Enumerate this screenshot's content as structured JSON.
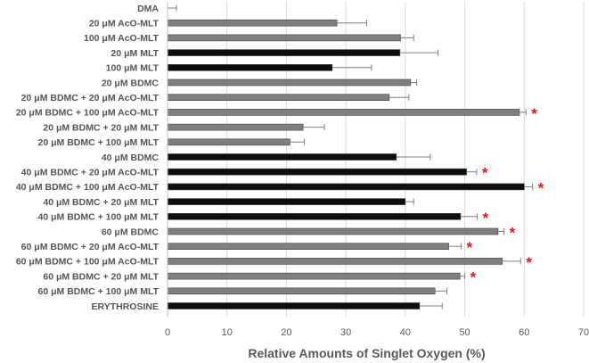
{
  "chart_data": {
    "type": "bar",
    "orientation": "horizontal",
    "title": "",
    "xlabel": "Relative Amounts of Singlet Oxygen (%)",
    "ylabel": "",
    "xlim": [
      0,
      70
    ],
    "xticks": [
      0,
      10,
      20,
      30,
      40,
      50,
      60,
      70
    ],
    "grid": "vertical",
    "significance_symbol": "*",
    "colors": {
      "gray": "#7f7f7f",
      "black": "#0d0d0d",
      "error_bar": "#7f7f7f",
      "gridline": "#d9d9d9",
      "significance": "#e8141b"
    },
    "categories": [
      "DMA",
      "20 μM AcO-MLT",
      "100 μM AcO-MLT",
      "20 μM MLT",
      "100 μM MLT",
      "20 μM BDMC",
      "20 μM BDMC + 20 μM AcO-MLT",
      "20 μM BDMC + 100 μM AcO-MLT",
      "20 μM BDMC + 20 μM MLT",
      "20 μM BDMC + 100 μM MLT",
      "40 μM BDMC",
      "40 μM BDMC + 20 μM AcO-MLT",
      "40 μM BDMC + 100 μM AcO-MLT",
      "40 μM BDMC + 20 μM MLT",
      "40 μM BDMC + 100 μM MLT",
      "60 μM BDMC",
      "60 μM BDMC + 20 μM AcO-MLT",
      "60 μM BDMC + 100 μM AcO-MLT",
      "60 μM BDMC + 20 μM MLT",
      "60 μM BDMC + 100 μM MLT",
      "ERYTHROSINE"
    ],
    "values": [
      0,
      28.5,
      39.2,
      39.1,
      27.7,
      40.9,
      37.3,
      59.2,
      22.8,
      20.6,
      38.5,
      50.3,
      60.0,
      40.0,
      49.3,
      55.6,
      47.3,
      56.3,
      49.2,
      45.0,
      42.4
    ],
    "errors": [
      1.5,
      5.0,
      2.2,
      6.4,
      6.6,
      1.0,
      3.3,
      1.1,
      3.6,
      2.4,
      5.7,
      1.7,
      1.4,
      1.4,
      2.8,
      1.0,
      2.1,
      3.1,
      0.8,
      2.0,
      3.8
    ],
    "bar_color_keys": [
      "gray",
      "gray",
      "gray",
      "black",
      "black",
      "gray",
      "gray",
      "gray",
      "gray",
      "gray",
      "black",
      "black",
      "black",
      "black",
      "black",
      "gray",
      "gray",
      "gray",
      "gray",
      "gray",
      "black"
    ],
    "significant": [
      false,
      false,
      false,
      false,
      false,
      false,
      false,
      true,
      false,
      false,
      false,
      true,
      true,
      false,
      true,
      true,
      true,
      true,
      true,
      false,
      false
    ]
  }
}
